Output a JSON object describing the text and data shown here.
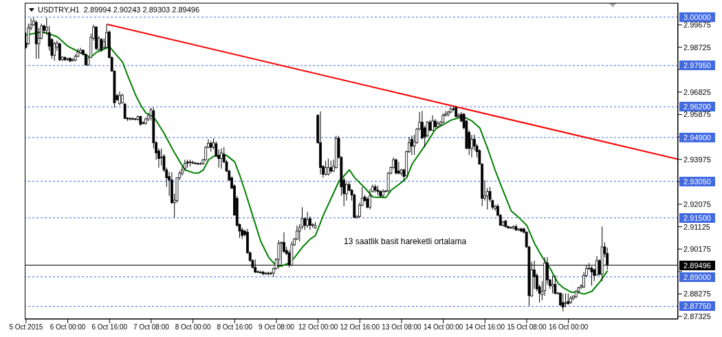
{
  "chart_data": {
    "type": "candlestick",
    "title": "USDTRY,H1  2.89994 2.90243 2.89303 2.89496",
    "annotations": [
      "13 saatlik basit hareketli ortalama"
    ],
    "categories": [
      "5 Oct 2015",
      null,
      null,
      null,
      null,
      null,
      null,
      null,
      null,
      null,
      null,
      null,
      null,
      null,
      null,
      null,
      "6 Oct 00:00",
      null,
      null,
      null,
      null,
      null,
      null,
      null,
      null,
      null,
      null,
      null,
      null,
      null,
      null,
      null,
      "6 Oct 16:00",
      null,
      null,
      null,
      null,
      null,
      null,
      null,
      null,
      null,
      null,
      null,
      null,
      null,
      null,
      null,
      "7 Oct 08:00",
      null,
      null,
      null,
      null,
      null,
      null,
      null,
      null,
      null,
      null,
      null,
      null,
      null,
      null,
      null,
      "8 Oct 00:00",
      null,
      null,
      null,
      null,
      null,
      null,
      null,
      null,
      null,
      null,
      null,
      null,
      null,
      null,
      null,
      "8 Oct 16:00",
      null,
      null,
      null,
      null,
      null,
      null,
      null,
      null,
      null,
      null,
      null,
      null,
      null,
      null,
      null,
      "9 Oct 08:00",
      null,
      null,
      null,
      null,
      null,
      null,
      null,
      null,
      null,
      null,
      null,
      null,
      null,
      null,
      null,
      "12 Oct 00:00",
      null,
      null,
      null,
      null,
      null,
      null,
      null,
      null,
      null,
      null,
      null,
      null,
      null,
      null,
      null,
      "12 Oct 16:00",
      null,
      null,
      null,
      null,
      null,
      null,
      null,
      null,
      null,
      null,
      null,
      null,
      null,
      null,
      null,
      "13 Oct 08:00",
      null,
      null,
      null,
      null,
      null,
      null,
      null,
      null,
      null,
      null,
      null,
      null,
      null,
      null,
      null,
      "14 Oct 00:00",
      null,
      null,
      null,
      null,
      null,
      null,
      null,
      null,
      null,
      null,
      null,
      null,
      null,
      null,
      null,
      "14 Oct 16:00",
      null,
      null,
      null,
      null,
      null,
      null,
      null,
      null,
      null,
      null,
      null,
      null,
      null,
      null,
      null,
      "15 Oct 08:00",
      null,
      null,
      null,
      null,
      null,
      null,
      null,
      null,
      null,
      null,
      null,
      null,
      null,
      null,
      null,
      "16 Oct 00:00",
      null,
      null,
      null,
      null,
      null,
      null,
      null,
      null,
      null,
      null,
      null,
      null,
      null,
      null,
      null,
      null,
      null,
      null,
      null,
      null,
      null,
      null,
      null,
      null,
      null,
      null,
      null,
      null,
      null,
      null,
      null,
      null,
      null,
      null,
      null,
      null,
      null,
      null,
      null,
      null,
      null,
      null
    ],
    "ohlc": [
      [
        2.9891,
        2.9935,
        2.9867,
        2.9872
      ],
      [
        2.9887,
        2.9973,
        2.9882,
        2.9954
      ],
      [
        2.9954,
        2.9995,
        2.9944,
        2.9968
      ],
      [
        2.9968,
        2.9997,
        2.9963,
        2.9983
      ],
      [
        2.9978,
        2.9987,
        2.9824,
        2.9887
      ],
      [
        2.9887,
        2.9954,
        2.9824,
        2.9911
      ],
      [
        2.9911,
        2.9973,
        2.9906,
        2.9963
      ],
      [
        2.9963,
        2.9968,
        2.993,
        2.9944
      ],
      [
        2.9944,
        2.9997,
        2.9925,
        2.9958
      ],
      [
        2.9935,
        2.9963,
        2.9858,
        2.9877
      ],
      [
        2.9906,
        2.9911,
        2.9824,
        2.9838
      ],
      [
        2.9838,
        2.9896,
        2.9815,
        2.9887
      ],
      [
        2.9872,
        2.9901,
        2.9858,
        2.9891
      ],
      [
        2.9887,
        2.9892,
        2.9814,
        2.9819
      ],
      [
        2.9821,
        2.9834,
        2.9814,
        2.9831
      ],
      [
        2.9829,
        2.9834,
        2.9815,
        2.9819
      ],
      [
        2.9821,
        2.9829,
        2.9814,
        2.9824
      ],
      [
        2.9826,
        2.9829,
        2.981,
        2.9814
      ],
      [
        2.9816,
        2.9826,
        2.9812,
        2.9821
      ],
      [
        2.9817,
        2.9843,
        2.9814,
        2.9834
      ],
      [
        2.9834,
        2.9867,
        2.9831,
        2.9853
      ],
      [
        2.985,
        2.987,
        2.9845,
        2.986
      ],
      [
        2.986,
        2.9863,
        2.9838,
        2.9843
      ],
      [
        2.9843,
        2.9845,
        2.9795,
        2.9798
      ],
      [
        2.9798,
        2.9831,
        2.9795,
        2.9826
      ],
      [
        2.9829,
        2.993,
        2.9826,
        2.9915
      ],
      [
        2.9911,
        2.9968,
        2.9901,
        2.9958
      ],
      [
        2.9958,
        2.9963,
        2.9858,
        2.9867
      ],
      [
        2.9862,
        2.992,
        2.9858,
        2.9911
      ],
      [
        2.9906,
        2.9911,
        2.9853,
        2.9862
      ],
      [
        2.9872,
        2.9911,
        2.9867,
        2.9896
      ],
      [
        2.9872,
        2.997,
        2.9867,
        2.9935
      ],
      [
        2.9937,
        2.9944,
        2.9824,
        2.9829
      ],
      [
        2.9829,
        2.9834,
        2.9771,
        2.9771
      ],
      [
        2.9771,
        2.9776,
        2.9617,
        2.9637
      ],
      [
        2.9668,
        2.9675,
        2.9646,
        2.965
      ],
      [
        2.9634,
        2.9685,
        2.9627,
        2.9668
      ],
      [
        2.9637,
        2.9675,
        2.9634,
        2.967
      ],
      [
        2.9632,
        2.9637,
        2.9569,
        2.9571
      ],
      [
        2.9573,
        2.9576,
        2.956,
        2.9569
      ],
      [
        2.9569,
        2.9576,
        2.9562,
        2.9571
      ],
      [
        2.9571,
        2.9575,
        2.9564,
        2.9569
      ],
      [
        2.9569,
        2.9573,
        2.9563,
        2.9567
      ],
      [
        2.9567,
        2.9583,
        2.9562,
        2.9579
      ],
      [
        2.9579,
        2.9583,
        2.954,
        2.9546
      ],
      [
        2.9553,
        2.956,
        2.9546,
        2.955
      ],
      [
        2.955,
        2.9575,
        2.9545,
        2.9569
      ],
      [
        2.9569,
        2.9589,
        2.956,
        2.9583
      ],
      [
        2.9583,
        2.9617,
        2.9562,
        2.9608
      ],
      [
        2.9603,
        2.9617,
        2.9444,
        2.9468
      ],
      [
        2.9468,
        2.9475,
        2.9396,
        2.9425
      ],
      [
        2.9433,
        2.9444,
        2.9363,
        2.9401
      ],
      [
        2.9404,
        2.9444,
        2.9372,
        2.9408
      ],
      [
        2.9411,
        2.942,
        2.9344,
        2.9353
      ],
      [
        2.9353,
        2.9363,
        2.9281,
        2.932
      ],
      [
        2.9325,
        2.9344,
        2.9243,
        2.931
      ],
      [
        2.931,
        2.9344,
        2.9209,
        2.9214
      ],
      [
        2.9214,
        2.9252,
        2.9151,
        2.9225
      ],
      [
        2.9223,
        2.932,
        2.9214,
        2.932
      ],
      [
        2.932,
        2.9348,
        2.931,
        2.9339
      ],
      [
        2.9339,
        2.9368,
        2.9329,
        2.9353
      ],
      [
        2.936,
        2.9396,
        2.9348,
        2.938
      ],
      [
        2.9387,
        2.9396,
        2.9363,
        2.9382
      ],
      [
        2.9385,
        2.9396,
        2.9368,
        2.9387
      ],
      [
        2.9385,
        2.9392,
        2.9378,
        2.9382
      ],
      [
        2.9382,
        2.9387,
        2.9377,
        2.938
      ],
      [
        2.938,
        2.9385,
        2.9375,
        2.9378
      ],
      [
        2.9378,
        2.9385,
        2.9375,
        2.938
      ],
      [
        2.938,
        2.9399,
        2.9375,
        2.9396
      ],
      [
        2.9396,
        2.9454,
        2.9392,
        2.9449
      ],
      [
        2.9449,
        2.9483,
        2.9444,
        2.9466
      ],
      [
        2.9466,
        2.9475,
        2.943,
        2.9449
      ],
      [
        2.9449,
        2.9487,
        2.944,
        2.9468
      ],
      [
        2.9464,
        2.9473,
        2.9409,
        2.9411
      ],
      [
        2.9413,
        2.9439,
        2.9363,
        2.9401
      ],
      [
        2.9401,
        2.9444,
        2.9358,
        2.9425
      ],
      [
        2.942,
        2.9449,
        2.9382,
        2.9387
      ],
      [
        2.9387,
        2.9396,
        2.9344,
        2.9348
      ],
      [
        2.9348,
        2.9353,
        2.9305,
        2.931
      ],
      [
        2.932,
        2.9325,
        2.9272,
        2.9276
      ],
      [
        2.9286,
        2.9291,
        2.9161,
        2.9161
      ],
      [
        2.9233,
        2.9243,
        2.9113,
        2.9118
      ],
      [
        2.9122,
        2.9127,
        2.9065,
        2.9094
      ],
      [
        2.9099,
        2.9108,
        2.906,
        2.9075
      ],
      [
        2.9094,
        2.9099,
        2.907,
        2.9079
      ],
      [
        2.9089,
        2.9103,
        2.8998,
        2.9002
      ],
      [
        2.9002,
        2.9008,
        2.8964,
        2.8969
      ],
      [
        2.8969,
        2.8974,
        2.8935,
        2.894
      ],
      [
        2.894,
        2.8974,
        2.8916,
        2.892
      ],
      [
        2.8922,
        2.8928,
        2.8916,
        2.892
      ],
      [
        2.892,
        2.8926,
        2.8914,
        2.8918
      ],
      [
        2.892,
        2.8926,
        2.8906,
        2.8913
      ],
      [
        2.8913,
        2.892,
        2.8908,
        2.8916
      ],
      [
        2.8916,
        2.8922,
        2.8906,
        2.8913
      ],
      [
        2.8913,
        2.8922,
        2.8908,
        2.8916
      ],
      [
        2.8916,
        2.894,
        2.89,
        2.8935
      ],
      [
        2.8935,
        2.8979,
        2.893,
        2.8974
      ],
      [
        2.8974,
        2.9055,
        2.8935,
        2.9041
      ],
      [
        2.9041,
        2.905,
        2.8945,
        2.9046
      ],
      [
        2.9046,
        2.9089,
        2.9002,
        2.9007
      ],
      [
        2.9012,
        2.9027,
        2.8993,
        2.8998
      ],
      [
        2.9002,
        2.9012,
        2.894,
        2.895
      ],
      [
        2.895,
        2.905,
        2.8945,
        2.9036
      ],
      [
        2.9036,
        2.9065,
        2.9031,
        2.906
      ],
      [
        2.906,
        2.9118,
        2.9055,
        2.9094
      ],
      [
        2.9094,
        2.9123,
        2.905,
        2.9108
      ],
      [
        2.9113,
        2.9195,
        2.9103,
        2.9147
      ],
      [
        2.9147,
        2.9151,
        2.9099,
        2.9118
      ],
      [
        2.9118,
        2.9175,
        2.9108,
        2.9142
      ],
      [
        2.9147,
        2.9156,
        2.9099,
        2.9118
      ],
      [
        2.9118,
        2.9127,
        2.9108,
        2.9122
      ],
      [
        2.9108,
        2.9132,
        2.9103,
        2.9118
      ],
      [
        2.9584,
        2.9589,
        2.9464,
        2.9468
      ],
      [
        2.9468,
        2.9601,
        2.9334,
        2.9363
      ],
      [
        2.9368,
        2.9372,
        2.932,
        2.9334
      ],
      [
        2.9334,
        2.9392,
        2.9329,
        2.9363
      ],
      [
        2.9334,
        2.9401,
        2.9329,
        2.9363
      ],
      [
        2.9363,
        2.9392,
        2.9339,
        2.9348
      ],
      [
        2.9348,
        2.9396,
        2.9344,
        2.9368
      ],
      [
        2.9363,
        2.9497,
        2.9358,
        2.9487
      ],
      [
        2.9487,
        2.9497,
        2.9401,
        2.9406
      ],
      [
        2.9406,
        2.9411,
        2.9243,
        2.9281
      ],
      [
        2.931,
        2.932,
        2.9199,
        2.9252
      ],
      [
        2.9252,
        2.93,
        2.9223,
        2.9291
      ],
      [
        2.9291,
        2.9305,
        2.9262,
        2.9267
      ],
      [
        2.9267,
        2.9272,
        2.9223,
        2.9247
      ],
      [
        2.9247,
        2.9252,
        2.9151,
        2.9151
      ],
      [
        2.9151,
        2.9161,
        2.9147,
        2.9156
      ],
      [
        2.9156,
        2.9214,
        2.9151,
        2.9204
      ],
      [
        2.9204,
        2.9281,
        2.9199,
        2.9233
      ],
      [
        2.9238,
        2.9247,
        2.9218,
        2.9223
      ],
      [
        2.923,
        2.9238,
        2.919,
        2.9195
      ],
      [
        2.9195,
        2.9272,
        2.9185,
        2.9243
      ],
      [
        2.9262,
        2.9291,
        2.9257,
        2.9281
      ],
      [
        2.9281,
        2.9291,
        2.9257,
        2.9267
      ],
      [
        2.9267,
        2.9286,
        2.9247,
        2.9262
      ],
      [
        2.9262,
        2.9267,
        2.9238,
        2.9243
      ],
      [
        2.9243,
        2.9272,
        2.9238,
        2.9262
      ],
      [
        2.9262,
        2.9267,
        2.9257,
        2.9264
      ],
      [
        2.9264,
        2.9344,
        2.9257,
        2.9339
      ],
      [
        2.9339,
        2.9368,
        2.9334,
        2.9363
      ],
      [
        2.9363,
        2.9406,
        2.9358,
        2.9396
      ],
      [
        2.9396,
        2.9401,
        2.9334,
        2.9339
      ],
      [
        2.9348,
        2.9387,
        2.9334,
        2.9339
      ],
      [
        2.9339,
        2.9358,
        2.9329,
        2.9353
      ],
      [
        2.9353,
        2.9358,
        2.9305,
        2.9325
      ],
      [
        2.9329,
        2.9435,
        2.9325,
        2.943
      ],
      [
        2.943,
        2.9493,
        2.9425,
        2.9468
      ],
      [
        2.9483,
        2.9498,
        2.9416,
        2.9454
      ],
      [
        2.9454,
        2.9502,
        2.9416,
        2.9473
      ],
      [
        2.9468,
        2.9531,
        2.9464,
        2.9526
      ],
      [
        2.9526,
        2.9598,
        2.9521,
        2.9555
      ],
      [
        2.9555,
        2.9603,
        2.9483,
        2.9488
      ],
      [
        2.9531,
        2.954,
        2.9449,
        2.9493
      ],
      [
        2.9497,
        2.956,
        2.9492,
        2.9555
      ],
      [
        2.9555,
        2.9565,
        2.9517,
        2.9521
      ],
      [
        2.9521,
        2.9584,
        2.9517,
        2.956
      ],
      [
        2.956,
        2.9569,
        2.9531,
        2.9536
      ],
      [
        2.9536,
        2.956,
        2.9531,
        2.955
      ],
      [
        2.9545,
        2.956,
        2.954,
        2.9555
      ],
      [
        2.9555,
        2.9593,
        2.955,
        2.9584
      ],
      [
        2.9584,
        2.9603,
        2.9579,
        2.9589
      ],
      [
        2.9589,
        2.9603,
        2.9579,
        2.9598
      ],
      [
        2.9598,
        2.9617,
        2.9594,
        2.9612
      ],
      [
        2.9612,
        2.9622,
        2.9603,
        2.9608
      ],
      [
        2.9617,
        2.9622,
        2.9574,
        2.9579
      ],
      [
        2.9579,
        2.9593,
        2.9574,
        2.9584
      ],
      [
        2.9589,
        2.9598,
        2.9555,
        2.956
      ],
      [
        2.9589,
        2.9594,
        2.9526,
        2.9531
      ],
      [
        2.956,
        2.9565,
        2.944,
        2.9444
      ],
      [
        2.9512,
        2.9521,
        2.9416,
        2.9444
      ],
      [
        2.9444,
        2.9502,
        2.9406,
        2.9483
      ],
      [
        2.9483,
        2.9502,
        2.9435,
        2.9454
      ],
      [
        2.9454,
        2.9464,
        2.9406,
        2.943
      ],
      [
        2.9435,
        2.944,
        2.9377,
        2.9377
      ],
      [
        2.9377,
        2.9382,
        2.92,
        2.9233
      ],
      [
        2.9233,
        2.931,
        2.9223,
        2.9243
      ],
      [
        2.9243,
        2.9276,
        2.9185,
        2.9262
      ],
      [
        2.9262,
        2.9281,
        2.9218,
        2.9228
      ],
      [
        2.9223,
        2.9228,
        2.9185,
        2.9195
      ],
      [
        2.919,
        2.9204,
        2.918,
        2.9199
      ],
      [
        2.9199,
        2.9209,
        2.9156,
        2.9161
      ],
      [
        2.9161,
        2.9166,
        2.9118,
        2.9118
      ],
      [
        2.9118,
        2.9137,
        2.9113,
        2.9132
      ],
      [
        2.9137,
        2.9142,
        2.9108,
        2.9113
      ],
      [
        2.9113,
        2.9118,
        2.9103,
        2.9108
      ],
      [
        2.9108,
        2.9113,
        2.9103,
        2.911
      ],
      [
        2.9106,
        2.9118,
        2.9101,
        2.9113
      ],
      [
        2.9113,
        2.9122,
        2.9094,
        2.9099
      ],
      [
        2.9099,
        2.9106,
        2.9094,
        2.9103
      ],
      [
        2.9103,
        2.9108,
        2.9089,
        2.9094
      ],
      [
        2.9103,
        2.9108,
        2.9084,
        2.9089
      ],
      [
        2.9089,
        2.9094,
        2.9022,
        2.9027
      ],
      [
        2.9027,
        2.9031,
        2.8777,
        2.882
      ],
      [
        2.882,
        2.8964,
        2.8815,
        2.893
      ],
      [
        2.893,
        2.8969,
        2.8849,
        2.8901
      ],
      [
        2.8906,
        2.8916,
        2.8839,
        2.8849
      ],
      [
        2.8858,
        2.8868,
        2.8791,
        2.883
      ],
      [
        2.8825,
        2.8882,
        2.8801,
        2.8839
      ],
      [
        2.8842,
        2.8983,
        2.882,
        2.8959
      ],
      [
        2.8959,
        2.8983,
        2.8868,
        2.8887
      ],
      [
        2.8887,
        2.8892,
        2.8849,
        2.8863
      ],
      [
        2.886,
        2.8906,
        2.883,
        2.8868
      ],
      [
        2.8868,
        2.8906,
        2.8825,
        2.883
      ],
      [
        2.883,
        2.8835,
        2.8825,
        2.8832
      ],
      [
        2.883,
        2.8835,
        2.8776,
        2.8781
      ],
      [
        2.8791,
        2.883,
        2.8754,
        2.8772
      ],
      [
        2.8787,
        2.883,
        2.8772,
        2.8791
      ],
      [
        2.8796,
        2.883,
        2.8781,
        2.8787
      ],
      [
        2.8791,
        2.882,
        2.8786,
        2.881
      ],
      [
        2.881,
        2.8822,
        2.8801,
        2.8818
      ],
      [
        2.8815,
        2.8844,
        2.881,
        2.8839
      ],
      [
        2.8839,
        2.8858,
        2.8834,
        2.8854
      ],
      [
        2.8857,
        2.8868,
        2.8849,
        2.8863
      ],
      [
        2.8857,
        2.8921,
        2.8852,
        2.8906
      ],
      [
        2.8906,
        2.895,
        2.8901,
        2.8935
      ],
      [
        2.8935,
        2.8959,
        2.893,
        2.8937
      ],
      [
        2.8937,
        2.8945,
        2.8863,
        2.8921
      ],
      [
        2.893,
        2.8935,
        2.8882,
        2.8906
      ],
      [
        2.8908,
        2.8988,
        2.8904,
        2.8969
      ],
      [
        2.8969,
        2.8974,
        2.8906,
        2.8911
      ],
      [
        2.8911,
        2.9113,
        2.8882,
        2.9027
      ],
      [
        2.9027,
        2.9046,
        2.8983,
        2.8998
      ],
      [
        2.89994,
        2.90243,
        2.89303,
        2.89496
      ],
      null,
      null,
      null,
      null,
      null,
      null,
      null,
      null,
      null,
      null,
      null,
      null,
      null,
      null,
      null,
      null,
      null,
      null,
      null,
      null,
      null,
      null,
      null,
      null,
      null,
      null,
      null
    ],
    "series": [
      {
        "type": "line",
        "color": "#008000",
        "values": [
          2.9925,
          null,
          null,
          null,
          null,
          null,
          2.9937,
          null,
          2.9932,
          null,
          null,
          null,
          2.9917,
          null,
          null,
          null,
          2.9877,
          null,
          null,
          2.986,
          null,
          2.9848,
          null,
          null,
          2.9834,
          2.9832,
          null,
          2.9851,
          null,
          null,
          2.9865,
          null,
          2.9875,
          null,
          2.9848,
          null,
          null,
          2.981,
          null,
          2.9752,
          null,
          null,
          2.967,
          null,
          2.9627,
          null,
          2.9593,
          null,
          2.9587,
          null,
          2.956,
          null,
          null,
          2.9507,
          null,
          null,
          2.9444,
          null,
          null,
          2.9387,
          null,
          2.9353,
          null,
          null,
          2.9341,
          null,
          2.9339,
          null,
          2.9353,
          null,
          2.9396,
          null,
          2.9411,
          null,
          null,
          2.9416,
          null,
          2.9414,
          null,
          null,
          2.9387,
          null,
          2.9329,
          null,
          2.9262,
          null,
          null,
          2.9156,
          null,
          null,
          2.905,
          null,
          null,
          2.8983,
          null,
          null,
          2.8946,
          null,
          2.8946,
          null,
          null,
          2.8959,
          null,
          2.8983,
          null,
          null,
          2.9026,
          null,
          null,
          2.906,
          null,
          2.9075,
          null,
          null,
          2.9161,
          null,
          null,
          2.9233,
          null,
          null,
          2.9305,
          null,
          null,
          null,
          2.9353,
          null,
          2.932,
          null,
          null,
          null,
          2.9276,
          null,
          null,
          2.9238,
          null,
          null,
          null,
          null,
          2.9236,
          null,
          2.9267,
          null,
          null,
          null,
          2.93,
          null,
          2.932,
          null,
          2.9377,
          null,
          null,
          2.9425,
          null,
          null,
          2.9473,
          null,
          null,
          2.9526,
          null,
          null,
          2.9545,
          null,
          null,
          2.9564,
          null,
          null,
          2.9574,
          null,
          2.9577,
          null,
          null,
          2.956,
          null,
          null,
          2.9531,
          null,
          null,
          2.9444,
          null,
          null,
          2.9348,
          null,
          2.9291,
          null,
          null,
          null,
          2.918,
          null,
          null,
          2.9151,
          null,
          null,
          2.9118,
          null,
          null,
          2.9041,
          null,
          null,
          2.8983,
          null,
          null,
          2.8935,
          null,
          null,
          2.8873,
          null,
          2.8854,
          null,
          null,
          2.8835,
          null,
          null,
          2.8833,
          null,
          2.8827,
          null,
          null,
          2.8839,
          null,
          null,
          2.8878,
          null,
          null,
          2.8926,
          null,
          null,
          null,
          null,
          null,
          null,
          null,
          null,
          null,
          null,
          null,
          null,
          null,
          null,
          null,
          null,
          null,
          null,
          null,
          null,
          null,
          null,
          null,
          null,
          null,
          null,
          null
        ]
      },
      {
        "type": "line",
        "color": "#ff0000",
        "values": [
          null,
          null,
          null,
          null,
          null,
          null,
          null,
          null,
          null,
          null,
          null,
          null,
          null,
          null,
          null,
          null,
          null,
          null,
          null,
          null,
          null,
          null,
          null,
          null,
          null,
          null,
          null,
          null,
          null,
          null,
          null,
          2.997,
          null,
          null,
          null,
          null,
          null,
          null,
          null,
          null,
          null,
          null,
          null,
          null,
          null,
          null,
          null,
          null,
          null,
          null,
          null,
          null,
          null,
          null,
          null,
          null,
          null,
          null,
          null,
          null,
          null,
          null,
          null,
          null,
          null,
          null,
          null,
          null,
          null,
          null,
          null,
          null,
          null,
          null,
          null,
          null,
          null,
          null,
          null,
          null,
          null,
          null,
          null,
          null,
          null,
          null,
          null,
          null,
          null,
          null,
          null,
          null,
          null,
          null,
          null,
          null,
          null,
          null,
          null,
          null,
          null,
          null,
          null,
          null,
          null,
          null,
          null,
          null,
          null,
          null,
          null,
          null,
          null,
          null,
          null,
          null,
          null,
          null,
          null,
          null,
          null,
          null,
          null,
          null,
          null,
          null,
          null,
          null,
          null,
          null,
          null,
          null,
          null,
          null,
          null,
          null,
          null,
          null,
          null,
          null,
          null,
          null,
          null,
          null,
          null,
          null,
          null,
          null,
          null,
          null,
          null,
          null,
          null,
          null,
          null,
          null,
          null,
          null,
          null,
          null,
          null,
          null,
          null,
          null,
          null,
          null,
          null,
          null,
          null,
          null,
          null,
          null,
          null,
          null,
          null,
          null,
          null,
          null,
          null,
          null,
          null,
          null,
          null,
          null,
          null,
          null,
          null,
          null,
          null,
          null,
          null,
          null,
          null,
          null,
          null,
          null,
          null,
          null,
          null,
          null,
          null,
          null,
          null,
          null,
          null,
          null,
          null,
          null,
          null,
          null,
          null,
          null,
          null,
          null,
          null,
          null,
          null,
          null,
          null,
          null,
          null,
          null,
          null,
          null,
          null,
          null,
          null,
          null,
          null,
          null,
          null,
          null,
          null,
          null,
          null,
          null,
          null,
          null,
          null,
          null,
          null,
          null,
          null,
          null,
          null,
          null,
          null,
          null,
          null,
          null,
          2.9398
        ]
      }
    ],
    "ylim": [
      2.8721,
      3.0061
    ],
    "yticks": [
      2.99675,
      2.98725,
      {
        "value": 2.97775,
        "label": null
      },
      2.96825,
      2.95875,
      {
        "value": 2.94925,
        "label": null
      },
      2.93975,
      {
        "value": 2.93025,
        "label": null
      },
      2.92075,
      2.91125,
      2.90175,
      {
        "value": 2.89225,
        "label": null
      },
      2.88275,
      2.87325
    ],
    "ref_lines": [
      {
        "axis": "y",
        "value": 3.0,
        "label": "3.00000",
        "color": "#4169e1",
        "line_style": "dashed"
      },
      {
        "axis": "y",
        "value": 2.9795,
        "label": "2.97950",
        "color": "#4169e1",
        "line_style": "dashed"
      },
      {
        "axis": "y",
        "value": 2.962,
        "label": "2.96200",
        "color": "#4169e1",
        "line_style": "dashed"
      },
      {
        "axis": "y",
        "value": 2.949,
        "label": "2.94900",
        "color": "#4169e1",
        "line_style": "dashed"
      },
      {
        "axis": "y",
        "value": 2.9305,
        "label": "2.93050",
        "color": "#4169e1",
        "line_style": "dashed"
      },
      {
        "axis": "y",
        "value": 2.915,
        "label": "2.91500",
        "color": "#4169e1",
        "line_style": "dashed"
      },
      {
        "axis": "y",
        "value": 2.89496,
        "label": "2.89496",
        "color": "#000000",
        "line_style": "solid"
      },
      {
        "axis": "y",
        "value": 2.89,
        "label": "2.89000",
        "color": "#4169e1",
        "line_style": "dashed"
      },
      {
        "axis": "y",
        "value": 2.8775,
        "label": "2.87750",
        "color": "#4169e1",
        "line_style": "dashed"
      }
    ]
  }
}
